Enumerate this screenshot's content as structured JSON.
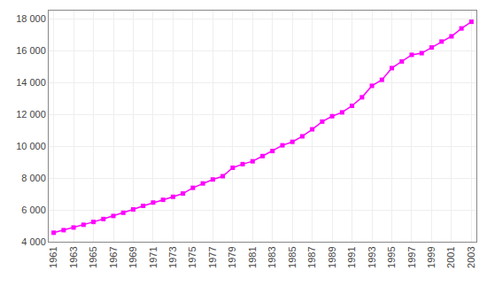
{
  "chart_data": {
    "type": "line",
    "x": [
      1961,
      1962,
      1963,
      1964,
      1965,
      1966,
      1967,
      1968,
      1969,
      1970,
      1971,
      1972,
      1973,
      1974,
      1975,
      1976,
      1977,
      1978,
      1979,
      1980,
      1981,
      1982,
      1983,
      1984,
      1985,
      1986,
      1987,
      1988,
      1989,
      1990,
      1991,
      1992,
      1993,
      1994,
      1995,
      1996,
      1997,
      1998,
      1999,
      2000,
      2001,
      2002,
      2003
    ],
    "values": [
      4565,
      4726,
      4893,
      5065,
      5242,
      5426,
      5617,
      5817,
      6028,
      6251,
      6459,
      6629,
      6819,
      7025,
      7383,
      7656,
      7906,
      8112,
      8641,
      8868,
      9046,
      9374,
      9690,
      10049,
      10267,
      10613,
      11054,
      11538,
      11876,
      12116,
      12529,
      13064,
      13782,
      14159,
      14894,
      15311,
      15726,
      15831,
      16189,
      16560,
      16888,
      17383,
      17800
    ],
    "color": "#FF00FF",
    "marker": "square",
    "xlim": [
      1960.5,
      2003.5
    ],
    "xticks": [
      1961,
      1963,
      1965,
      1967,
      1969,
      1971,
      1973,
      1975,
      1977,
      1979,
      1981,
      1983,
      1985,
      1987,
      1989,
      1991,
      1993,
      1995,
      1997,
      1999,
      2001,
      2003
    ],
    "ylim": [
      4000,
      18500
    ],
    "yticks": [
      {
        "value": 4000,
        "label": "4 000"
      },
      {
        "value": 6000,
        "label": "6 000"
      },
      {
        "value": 8000,
        "label": "8 000"
      },
      {
        "value": 10000,
        "label": "10 000"
      },
      {
        "value": 12000,
        "label": "12 000"
      },
      {
        "value": 14000,
        "label": "14 000"
      },
      {
        "value": 16000,
        "label": "16 000"
      },
      {
        "value": 18000,
        "label": "18 000"
      }
    ],
    "grid": true
  }
}
